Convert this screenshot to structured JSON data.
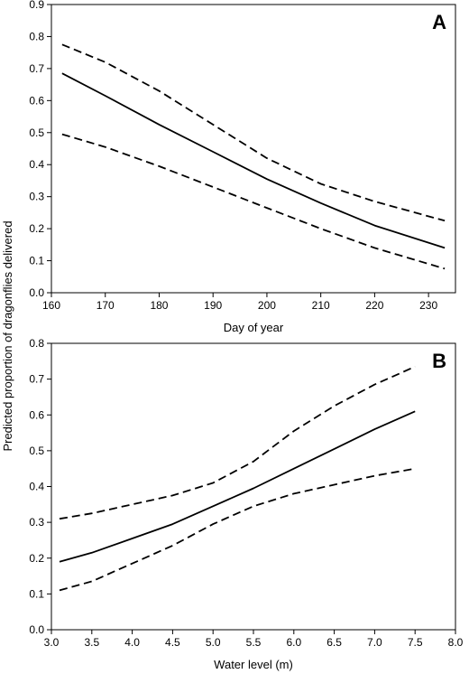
{
  "figure": {
    "shared_ylabel": "Predicted proportion of dragonflies delivered"
  },
  "chart_data": [
    {
      "type": "line",
      "panel_label": "A",
      "xlabel": "Day of year",
      "ylabel": "Predicted proportion of dragonflies delivered",
      "xlim": [
        160,
        235
      ],
      "ylim": [
        0,
        0.9
      ],
      "xticks": [
        160,
        170,
        180,
        190,
        200,
        210,
        220,
        230
      ],
      "yticks": [
        0.0,
        0.1,
        0.2,
        0.3,
        0.4,
        0.5,
        0.6,
        0.7,
        0.8,
        0.9
      ],
      "xtick_labels": [
        "160",
        "170",
        "180",
        "190",
        "200",
        "210",
        "220",
        "230"
      ],
      "ytick_labels": [
        "0.0",
        "0.1",
        "0.2",
        "0.3",
        "0.4",
        "0.5",
        "0.6",
        "0.7",
        "0.8",
        "0.9"
      ],
      "grid": false,
      "series": [
        {
          "style": "solid",
          "x": [
            162,
            170,
            180,
            190,
            200,
            210,
            220,
            233
          ],
          "y": [
            0.685,
            0.615,
            0.525,
            0.44,
            0.355,
            0.28,
            0.21,
            0.14
          ]
        },
        {
          "style": "dashed",
          "x": [
            162,
            170,
            180,
            190,
            200,
            210,
            220,
            233
          ],
          "y": [
            0.775,
            0.72,
            0.63,
            0.525,
            0.42,
            0.34,
            0.285,
            0.225
          ]
        },
        {
          "style": "dashed",
          "x": [
            162,
            170,
            180,
            190,
            200,
            210,
            220,
            233
          ],
          "y": [
            0.495,
            0.455,
            0.395,
            0.33,
            0.265,
            0.2,
            0.14,
            0.075
          ]
        }
      ]
    },
    {
      "type": "line",
      "panel_label": "B",
      "xlabel": "Water level (m)",
      "ylabel": "Predicted proportion of dragonflies delivered",
      "xlim": [
        3.0,
        8.0
      ],
      "ylim": [
        0,
        0.8
      ],
      "xticks": [
        3.0,
        3.5,
        4.0,
        4.5,
        5.0,
        5.5,
        6.0,
        6.5,
        7.0,
        7.5,
        8.0
      ],
      "yticks": [
        0.0,
        0.1,
        0.2,
        0.3,
        0.4,
        0.5,
        0.6,
        0.7,
        0.8
      ],
      "xtick_labels": [
        "3.0",
        "3.5",
        "4.0",
        "4.5",
        "5.0",
        "5.5",
        "6.0",
        "6.5",
        "7.0",
        "7.5",
        "8.0"
      ],
      "ytick_labels": [
        "0.0",
        "0.1",
        "0.2",
        "0.3",
        "0.4",
        "0.5",
        "0.6",
        "0.7",
        "0.8"
      ],
      "grid": false,
      "series": [
        {
          "style": "solid",
          "x": [
            3.1,
            3.5,
            4.0,
            4.5,
            5.0,
            5.5,
            6.0,
            6.5,
            7.0,
            7.5
          ],
          "y": [
            0.19,
            0.215,
            0.255,
            0.295,
            0.345,
            0.395,
            0.45,
            0.505,
            0.56,
            0.61
          ]
        },
        {
          "style": "dashed",
          "x": [
            3.1,
            3.5,
            4.0,
            4.5,
            5.0,
            5.5,
            6.0,
            6.5,
            7.0,
            7.5
          ],
          "y": [
            0.31,
            0.325,
            0.35,
            0.375,
            0.41,
            0.47,
            0.555,
            0.625,
            0.685,
            0.735
          ]
        },
        {
          "style": "dashed",
          "x": [
            3.1,
            3.5,
            4.0,
            4.5,
            5.0,
            5.5,
            6.0,
            6.5,
            7.0,
            7.5
          ],
          "y": [
            0.11,
            0.135,
            0.185,
            0.235,
            0.295,
            0.345,
            0.38,
            0.405,
            0.43,
            0.45
          ]
        }
      ]
    }
  ]
}
